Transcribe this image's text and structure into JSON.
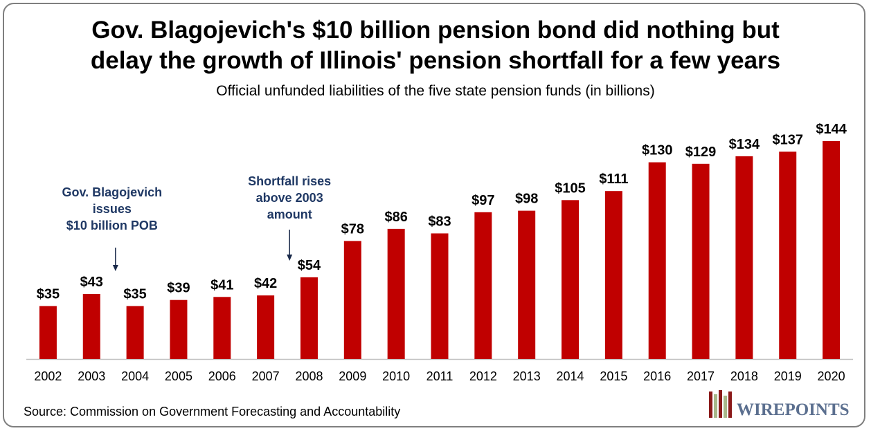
{
  "title_line1": "Gov. Blagojevich's $10 billion pension bond did nothing but",
  "title_line2": "delay the growth of Illinois' pension shortfall for a few years",
  "subtitle": "Official unfunded liabilities of the five state pension funds (in billions)",
  "source": "Source: Commission on Government Forecasting and Accountability",
  "logo_text": "WIREPOINTS",
  "colors": {
    "bar": "#c00000",
    "annotation": "#1f3864",
    "axis": "#bfbfbf",
    "frame": "#7f7f7f"
  },
  "chart_data": {
    "type": "bar",
    "title": "Gov. Blagojevich's $10 billion pension bond did nothing but delay the growth of Illinois' pension shortfall for a few years",
    "subtitle": "Official unfunded liabilities of the five state pension funds (in billions)",
    "xlabel": "",
    "ylabel": "",
    "categories": [
      "2002",
      "2003",
      "2004",
      "2005",
      "2006",
      "2007",
      "2008",
      "2009",
      "2010",
      "2011",
      "2012",
      "2013",
      "2014",
      "2015",
      "2016",
      "2017",
      "2018",
      "2019",
      "2020"
    ],
    "values": [
      35,
      43,
      35,
      39,
      41,
      42,
      54,
      78,
      86,
      83,
      97,
      98,
      105,
      111,
      130,
      129,
      134,
      137,
      144
    ],
    "value_labels": [
      "$35",
      "$43",
      "$35",
      "$39",
      "$41",
      "$42",
      "$54",
      "$78",
      "$86",
      "$83",
      "$97",
      "$98",
      "$105",
      "$111",
      "$130",
      "$129",
      "$134",
      "$137",
      "$144"
    ],
    "ylim": [
      0,
      144
    ],
    "grid": false,
    "legend": "none",
    "annotations": [
      {
        "lines": [
          "Gov. Blagojevich",
          "issues",
          "$10 billion POB"
        ],
        "arrow_category": "2004"
      },
      {
        "lines": [
          "Shortfall rises",
          "above 2003",
          "amount"
        ],
        "arrow_category": "2008"
      }
    ]
  }
}
